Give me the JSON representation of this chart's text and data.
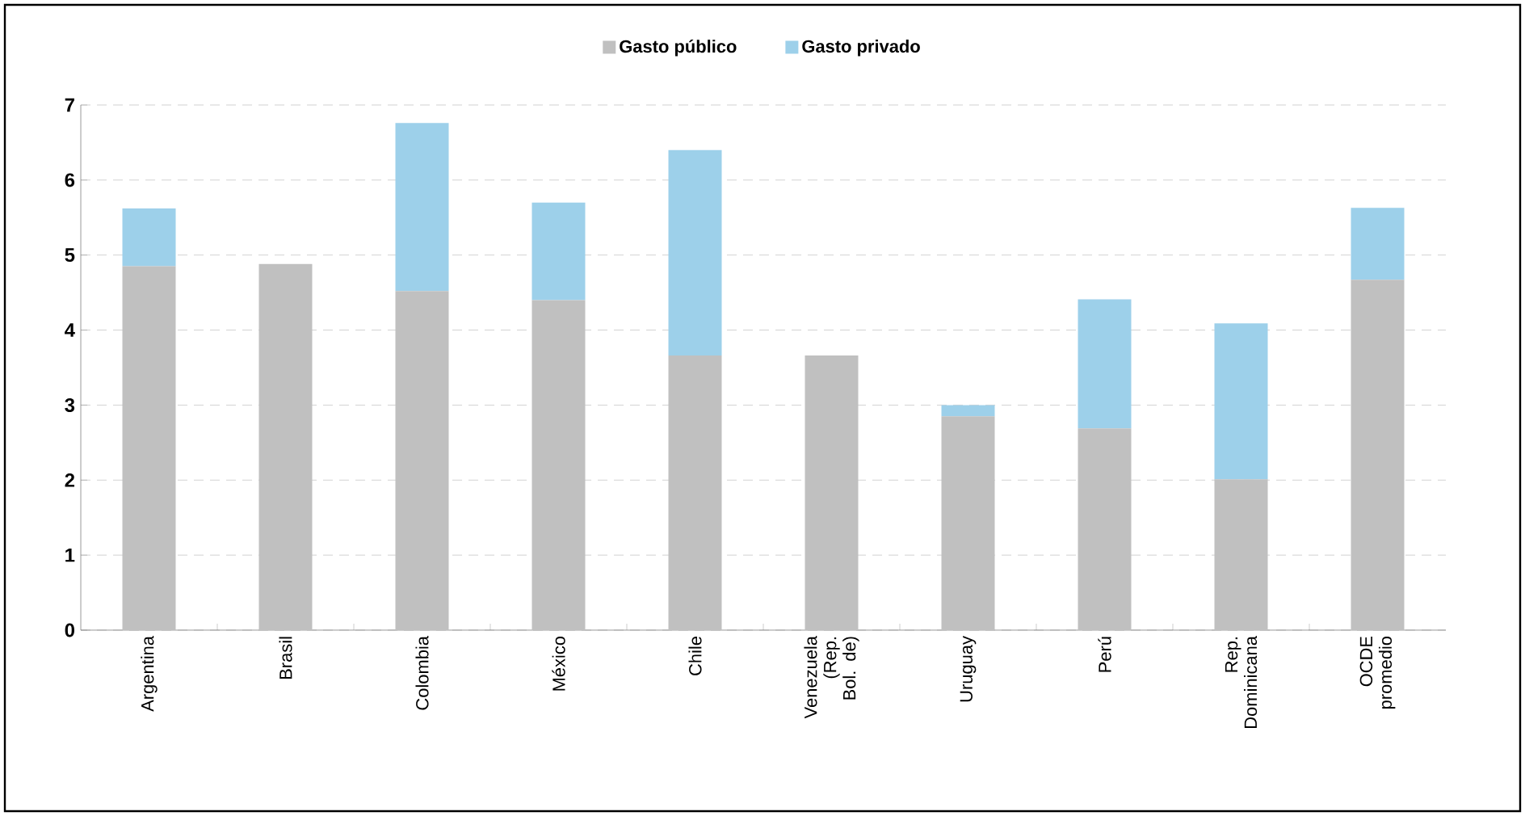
{
  "chart_data": {
    "type": "bar",
    "stacked": true,
    "categories": [
      "Argentina",
      "Brasil",
      "Colombia",
      "México",
      "Chile",
      "Venezuela (Rep. Bol. de)",
      "Uruguay",
      "Perú",
      "Rep. Dominicana",
      "OCDE promedio"
    ],
    "series": [
      {
        "name": "Gasto público",
        "color": "#c0c0c0",
        "values": [
          4.85,
          4.88,
          4.52,
          4.4,
          3.66,
          3.66,
          2.85,
          2.69,
          2.01,
          4.67
        ]
      },
      {
        "name": "Gasto privado",
        "color": "#9dd0ea",
        "values": [
          0.77,
          0,
          2.24,
          1.3,
          2.74,
          0,
          0.15,
          1.72,
          2.08,
          0.96
        ]
      }
    ],
    "ylim": [
      0,
      7
    ],
    "yticks": [
      0,
      1,
      2,
      3,
      4,
      5,
      6,
      7
    ],
    "grid": "y",
    "legend": "top"
  }
}
